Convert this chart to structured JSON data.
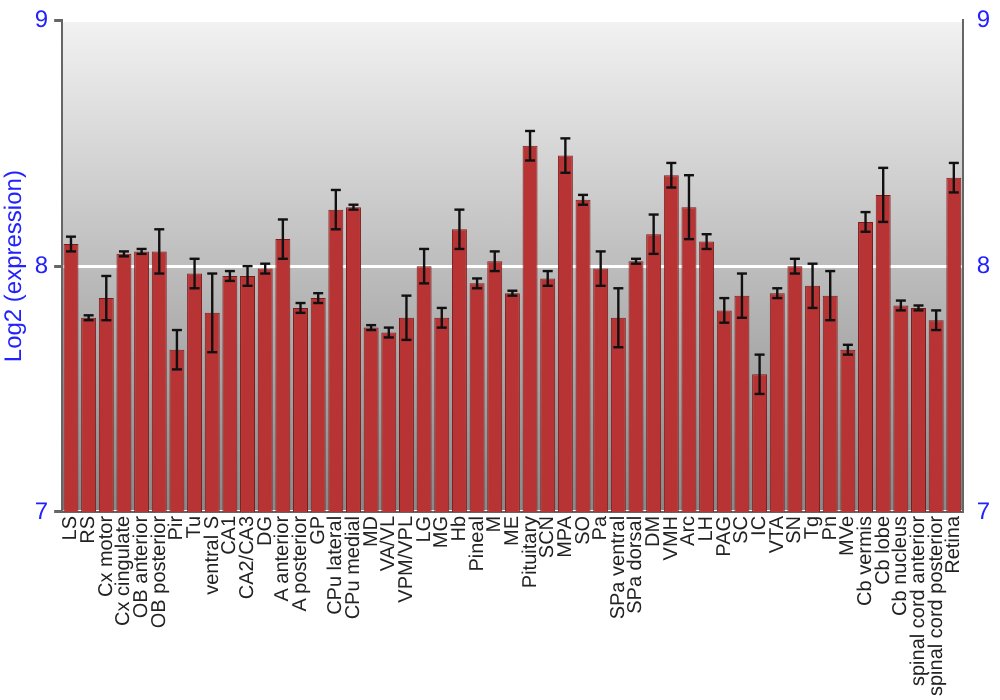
{
  "chart_data": {
    "type": "bar",
    "ylabel": "Log2 (expression)",
    "categories": [
      "LS",
      "RS",
      "Cx motor",
      "Cx cingulate",
      "OB anterior",
      "OB posterior",
      "Pir",
      "Tu",
      "ventral S",
      "CA1",
      "CA2/CA3",
      "DG",
      "A anterior",
      "A posterior",
      "GP",
      "CPu lateral",
      "CPu medial",
      "MD",
      "VA/VL",
      "VPM/VPL",
      "LG",
      "MG",
      "Hb",
      "Pineal",
      "M",
      "ME",
      "Pituitary",
      "SCN",
      "MPA",
      "SO",
      "Pa",
      "SPa ventral",
      "SPa dorsal",
      "DM",
      "VMH",
      "Arc",
      "LH",
      "PAG",
      "SC",
      "IC",
      "VTA",
      "SN",
      "Tg",
      "Pn",
      "MVe",
      "Cb vermis",
      "Cb lobe",
      "Cb nucleus",
      "spinal cord anterior",
      "spinal cord posterior",
      "Retina"
    ],
    "values": [
      8.09,
      7.79,
      7.87,
      8.05,
      8.06,
      8.06,
      7.66,
      7.97,
      7.81,
      7.96,
      7.96,
      7.99,
      8.11,
      7.83,
      7.87,
      8.23,
      8.24,
      7.75,
      7.73,
      7.79,
      8.0,
      7.79,
      8.15,
      7.93,
      8.02,
      7.89,
      8.49,
      7.95,
      8.45,
      8.27,
      7.99,
      7.79,
      8.02,
      8.13,
      8.37,
      8.24,
      8.1,
      7.82,
      7.88,
      7.56,
      7.89,
      8.0,
      7.92,
      7.88,
      7.66,
      8.18,
      8.29,
      7.84,
      7.83,
      7.78,
      8.36
    ],
    "errors": [
      0.03,
      0.01,
      0.09,
      0.01,
      0.01,
      0.09,
      0.08,
      0.06,
      0.16,
      0.02,
      0.04,
      0.02,
      0.08,
      0.02,
      0.02,
      0.08,
      0.01,
      0.01,
      0.02,
      0.09,
      0.07,
      0.04,
      0.08,
      0.02,
      0.04,
      0.01,
      0.06,
      0.03,
      0.07,
      0.02,
      0.07,
      0.12,
      0.01,
      0.08,
      0.05,
      0.13,
      0.03,
      0.05,
      0.09,
      0.08,
      0.02,
      0.03,
      0.09,
      0.1,
      0.02,
      0.04,
      0.11,
      0.02,
      0.01,
      0.04,
      0.06
    ],
    "color": "#b83434",
    "ylim": [
      7,
      9
    ],
    "yticks": [
      7,
      8,
      9
    ],
    "y2lim": [
      7,
      9
    ],
    "y2ticks": [
      7,
      8,
      9
    ],
    "grid": "y"
  }
}
